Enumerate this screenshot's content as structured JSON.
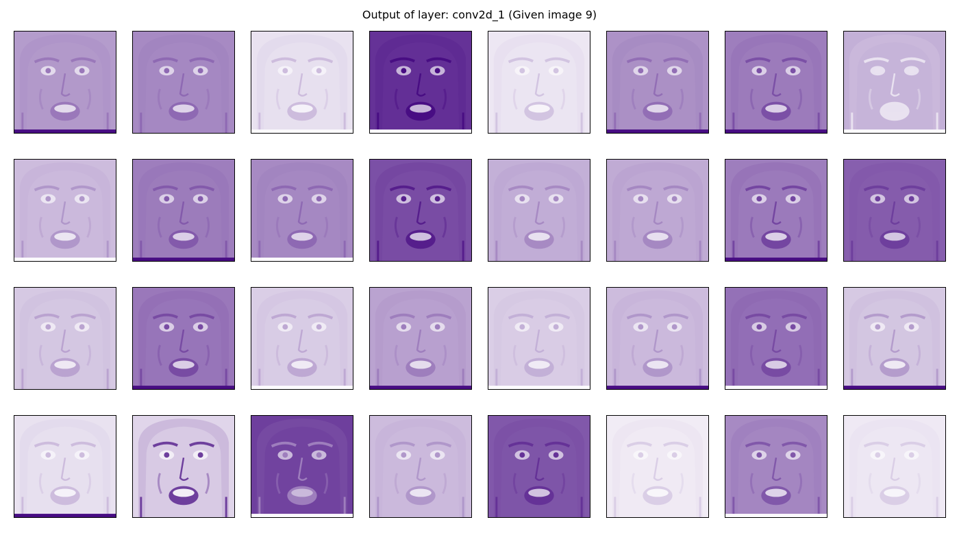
{
  "figure": {
    "title": "Output of layer: conv2d_1 (Given image 9)"
  },
  "colormap": {
    "name": "Purples",
    "light": "#fcfbfd",
    "dark": "#3f007d"
  },
  "feature_maps": [
    {
      "index": 1,
      "bg": 0.38,
      "feature": 0.52,
      "bottom_bar": "dark"
    },
    {
      "index": 2,
      "bg": 0.45,
      "feature": 0.58,
      "bottom_bar": "none"
    },
    {
      "index": 3,
      "bg": 0.1,
      "feature": 0.25,
      "bottom_bar": "light"
    },
    {
      "index": 4,
      "bg": 0.8,
      "feature": 0.95,
      "bottom_bar": "light"
    },
    {
      "index": 5,
      "bg": 0.08,
      "feature": 0.22,
      "bottom_bar": "none"
    },
    {
      "index": 6,
      "bg": 0.42,
      "feature": 0.56,
      "bottom_bar": "dark"
    },
    {
      "index": 7,
      "bg": 0.5,
      "feature": 0.68,
      "bottom_bar": "dark"
    },
    {
      "index": 8,
      "bg": 0.3,
      "feature": 0.1,
      "bottom_bar": "light"
    },
    {
      "index": 9,
      "bg": 0.25,
      "feature": 0.4,
      "bottom_bar": "light"
    },
    {
      "index": 10,
      "bg": 0.5,
      "feature": 0.64,
      "bottom_bar": "dark"
    },
    {
      "index": 11,
      "bg": 0.45,
      "feature": 0.58,
      "bottom_bar": "light"
    },
    {
      "index": 12,
      "bg": 0.68,
      "feature": 0.88,
      "bottom_bar": "none"
    },
    {
      "index": 13,
      "bg": 0.3,
      "feature": 0.45,
      "bottom_bar": "none"
    },
    {
      "index": 14,
      "bg": 0.32,
      "feature": 0.46,
      "bottom_bar": "none"
    },
    {
      "index": 15,
      "bg": 0.5,
      "feature": 0.72,
      "bottom_bar": "dark"
    },
    {
      "index": 16,
      "bg": 0.62,
      "feature": 0.75,
      "bottom_bar": "none"
    },
    {
      "index": 17,
      "bg": 0.2,
      "feature": 0.35,
      "bottom_bar": "none"
    },
    {
      "index": 18,
      "bg": 0.52,
      "feature": 0.7,
      "bottom_bar": "dark"
    },
    {
      "index": 19,
      "bg": 0.18,
      "feature": 0.33,
      "bottom_bar": "light"
    },
    {
      "index": 20,
      "bg": 0.35,
      "feature": 0.5,
      "bottom_bar": "dark"
    },
    {
      "index": 21,
      "bg": 0.18,
      "feature": 0.3,
      "bottom_bar": "light"
    },
    {
      "index": 22,
      "bg": 0.25,
      "feature": 0.4,
      "bottom_bar": "dark"
    },
    {
      "index": 23,
      "bg": 0.55,
      "feature": 0.7,
      "bottom_bar": "light"
    },
    {
      "index": 24,
      "bg": 0.2,
      "feature": 0.38,
      "bottom_bar": "dark"
    },
    {
      "index": 25,
      "bg": 0.1,
      "feature": 0.25,
      "bottom_bar": "dark"
    },
    {
      "index": 26,
      "bg": 0.15,
      "feature": 0.75,
      "bottom_bar": "none"
    },
    {
      "index": 27,
      "bg": 0.75,
      "feature": 0.5,
      "bottom_bar": "light"
    },
    {
      "index": 28,
      "bg": 0.25,
      "feature": 0.4,
      "bottom_bar": "none"
    },
    {
      "index": 29,
      "bg": 0.65,
      "feature": 0.8,
      "bottom_bar": "none"
    },
    {
      "index": 30,
      "bg": 0.06,
      "feature": 0.18,
      "bottom_bar": "none"
    },
    {
      "index": 31,
      "bg": 0.45,
      "feature": 0.65,
      "bottom_bar": "light"
    },
    {
      "index": 32,
      "bg": 0.07,
      "feature": 0.18,
      "bottom_bar": "none"
    }
  ]
}
